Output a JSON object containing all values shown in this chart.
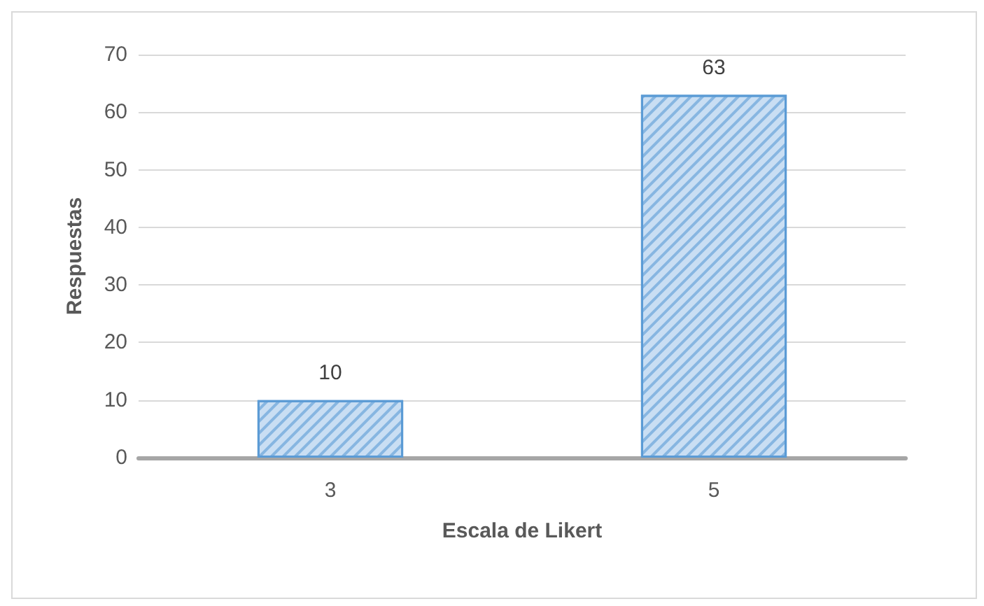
{
  "chart_data": {
    "type": "bar",
    "xlabel": "Escala de Likert",
    "ylabel": "Respuestas",
    "categories": [
      "3",
      "5"
    ],
    "values": [
      10,
      63
    ],
    "color": "#c9def3",
    "ylim": [
      0,
      70
    ],
    "yticks": [
      0,
      10,
      20,
      30,
      40,
      50,
      60,
      70
    ],
    "grid": "y",
    "data_labels": true
  }
}
